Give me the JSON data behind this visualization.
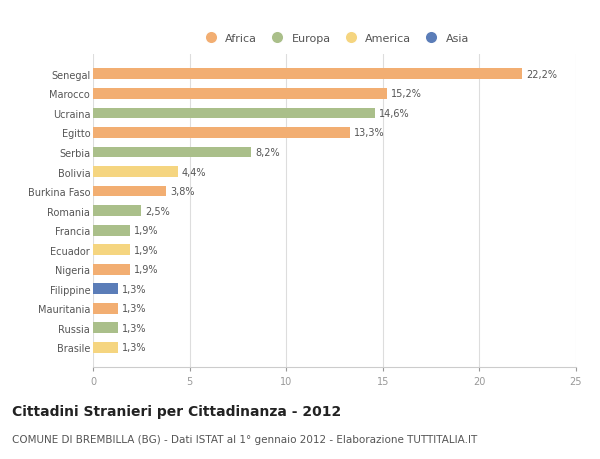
{
  "countries": [
    "Senegal",
    "Marocco",
    "Ucraina",
    "Egitto",
    "Serbia",
    "Bolivia",
    "Burkina Faso",
    "Romania",
    "Francia",
    "Ecuador",
    "Nigeria",
    "Filippine",
    "Mauritania",
    "Russia",
    "Brasile"
  ],
  "values": [
    22.2,
    15.2,
    14.6,
    13.3,
    8.2,
    4.4,
    3.8,
    2.5,
    1.9,
    1.9,
    1.9,
    1.3,
    1.3,
    1.3,
    1.3
  ],
  "continents": [
    "Africa",
    "Africa",
    "Europa",
    "Africa",
    "Europa",
    "America",
    "Africa",
    "Europa",
    "Europa",
    "America",
    "Africa",
    "Asia",
    "Africa",
    "Europa",
    "America"
  ],
  "colors": {
    "Africa": "#F2AE72",
    "Europa": "#AABF8A",
    "America": "#F5D580",
    "Asia": "#5B7DB8"
  },
  "legend_order": [
    "Africa",
    "Europa",
    "America",
    "Asia"
  ],
  "xlim": [
    0,
    25
  ],
  "xticks": [
    0,
    5,
    10,
    15,
    20,
    25
  ],
  "title": "Cittadini Stranieri per Cittadinanza - 2012",
  "subtitle": "COMUNE DI BREMBILLA (BG) - Dati ISTAT al 1° gennaio 2012 - Elaborazione TUTTITALIA.IT",
  "title_fontsize": 10,
  "subtitle_fontsize": 7.5,
  "label_fontsize": 7,
  "tick_fontsize": 7,
  "legend_fontsize": 8,
  "bar_height": 0.55,
  "background_color": "#ffffff"
}
